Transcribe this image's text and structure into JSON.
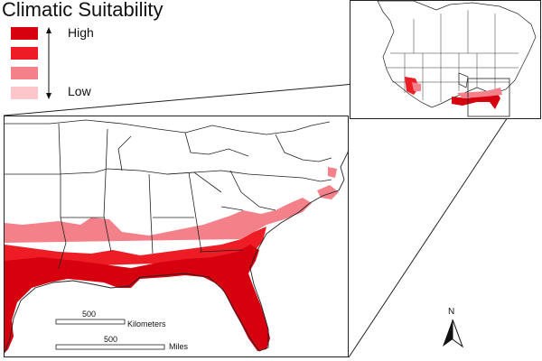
{
  "legend": {
    "title": "Climatic Suitability",
    "high_label": "High",
    "low_label": "Low",
    "classes": [
      {
        "color": "#d7000f"
      },
      {
        "color": "#ee1c24"
      },
      {
        "color": "#f4808a"
      },
      {
        "color": "#fcc6cb"
      }
    ]
  },
  "scale": {
    "km_value": "500",
    "km_unit": "Kilometers",
    "mi_value": "500",
    "mi_unit": "Miles"
  },
  "north_arrow": {
    "label": "N"
  },
  "colors": {
    "high": "#d7000f",
    "medium_high": "#ee1c24",
    "medium": "#f4808a",
    "low": "#fcc6cb",
    "border": "#222222"
  }
}
